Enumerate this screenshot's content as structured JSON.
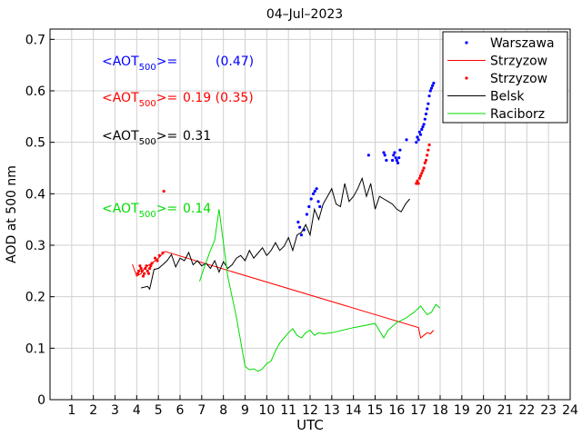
{
  "chart_data": {
    "type": "line",
    "title": "04–Jul–2023",
    "xlabel": "UTC",
    "ylabel": "AOD at 500 nm",
    "xlim": [
      0,
      24
    ],
    "ylim": [
      0,
      0.72
    ],
    "xticks": [
      1,
      2,
      3,
      4,
      5,
      6,
      7,
      8,
      9,
      10,
      11,
      12,
      13,
      14,
      15,
      16,
      17,
      18,
      19,
      20,
      21,
      22,
      23,
      24
    ],
    "yticks": [
      0,
      0.1,
      0.2,
      0.3,
      0.4,
      0.5,
      0.6,
      0.7
    ],
    "ytick_labels": [
      "0",
      "0.1",
      "0.2",
      "0.3",
      "0.4",
      "0.5",
      "0.6",
      "0.7"
    ],
    "grid": true,
    "legend_position": "top-right",
    "annotations": [
      {
        "prefix": "<AOT",
        "sub": "500",
        "suffix": ">=",
        "value": "(0.47)",
        "color": "#0000ff"
      },
      {
        "prefix": "<AOT",
        "sub": "500",
        "suffix": ">=",
        "value": "0.19 (0.35)",
        "color": "#ff0000"
      },
      {
        "prefix": "<AOT",
        "sub": "500",
        "suffix": ">=",
        "value": "0.31",
        "color": "#000000"
      },
      {
        "prefix": "<AOT",
        "sub": "500",
        "suffix": ">=",
        "value": "0.14",
        "color": "#00dd00"
      }
    ],
    "series": [
      {
        "name": "Warszawa",
        "style": "points",
        "color": "#0000ff",
        "x": [
          11.45,
          11.52,
          11.6,
          11.72,
          11.85,
          11.95,
          12.05,
          12.15,
          12.22,
          12.3,
          12.38,
          12.45,
          14.7,
          15.4,
          15.45,
          15.52,
          15.8,
          15.85,
          15.9,
          15.95,
          16.0,
          16.05,
          16.1,
          16.15,
          16.45,
          16.9,
          16.95,
          17.0,
          17.05,
          17.1,
          17.15,
          17.2,
          17.25,
          17.3,
          17.35,
          17.4,
          17.45,
          17.5,
          17.55,
          17.6,
          17.65,
          17.7
        ],
        "y": [
          0.345,
          0.335,
          0.32,
          0.33,
          0.36,
          0.375,
          0.39,
          0.4,
          0.405,
          0.41,
          0.385,
          0.375,
          0.475,
          0.48,
          0.475,
          0.465,
          0.465,
          0.475,
          0.48,
          0.47,
          0.465,
          0.46,
          0.47,
          0.485,
          0.505,
          0.5,
          0.51,
          0.505,
          0.52,
          0.515,
          0.525,
          0.53,
          0.535,
          0.545,
          0.555,
          0.565,
          0.575,
          0.59,
          0.6,
          0.605,
          0.61,
          0.615
        ]
      },
      {
        "name": "Strzyzow",
        "style": "line",
        "color": "#ff0000",
        "x": [
          3.8,
          4.0,
          4.2,
          4.35,
          4.5,
          4.7,
          5.0,
          5.3,
          17.0,
          17.1,
          17.25,
          17.4,
          17.55,
          17.7
        ],
        "y": [
          0.263,
          0.24,
          0.245,
          0.255,
          0.26,
          0.265,
          0.275,
          0.288,
          0.14,
          0.12,
          0.125,
          0.13,
          0.128,
          0.135
        ]
      },
      {
        "name": "Strzyzow",
        "style": "points",
        "color": "#ff0000",
        "x": [
          4.05,
          4.1,
          4.15,
          4.2,
          4.25,
          4.3,
          4.35,
          4.4,
          4.45,
          4.5,
          4.55,
          4.6,
          4.65,
          4.7,
          4.85,
          4.95,
          5.05,
          5.2,
          5.25,
          16.9,
          16.95,
          17.0,
          17.05,
          17.1,
          17.15,
          17.2,
          17.25,
          17.3,
          17.35,
          17.4,
          17.45,
          17.5
        ],
        "y": [
          0.245,
          0.25,
          0.26,
          0.255,
          0.25,
          0.24,
          0.245,
          0.255,
          0.26,
          0.25,
          0.245,
          0.255,
          0.26,
          0.265,
          0.275,
          0.27,
          0.28,
          0.285,
          0.405,
          0.42,
          0.425,
          0.42,
          0.43,
          0.435,
          0.44,
          0.445,
          0.45,
          0.46,
          0.465,
          0.475,
          0.485,
          0.495
        ]
      },
      {
        "name": "Belsk",
        "style": "line",
        "color": "#000000",
        "x": [
          4.2,
          4.5,
          4.6,
          4.8,
          5.0,
          5.2,
          5.4,
          5.6,
          5.8,
          6.0,
          6.2,
          6.4,
          6.6,
          6.8,
          7.0,
          7.2,
          7.4,
          7.6,
          7.8,
          8.0,
          8.2,
          8.4,
          8.6,
          8.8,
          9.0,
          9.2,
          9.4,
          9.6,
          9.8,
          10.0,
          10.2,
          10.4,
          10.6,
          10.8,
          11.0,
          11.2,
          11.4,
          11.6,
          11.8,
          12.0,
          12.2,
          12.4,
          12.6,
          12.8,
          13.0,
          13.2,
          13.4,
          13.6,
          13.8,
          14.0,
          14.2,
          14.4,
          14.6,
          14.8,
          15.0,
          15.2,
          15.4,
          15.6,
          15.8,
          16.0,
          16.2,
          16.4,
          16.6
        ],
        "y": [
          0.217,
          0.22,
          0.215,
          0.253,
          0.255,
          0.262,
          0.27,
          0.282,
          0.258,
          0.275,
          0.27,
          0.286,
          0.262,
          0.27,
          0.26,
          0.265,
          0.255,
          0.27,
          0.248,
          0.268,
          0.255,
          0.262,
          0.275,
          0.28,
          0.27,
          0.29,
          0.275,
          0.285,
          0.295,
          0.28,
          0.29,
          0.305,
          0.29,
          0.298,
          0.315,
          0.29,
          0.32,
          0.325,
          0.34,
          0.32,
          0.37,
          0.35,
          0.38,
          0.395,
          0.41,
          0.38,
          0.375,
          0.42,
          0.385,
          0.395,
          0.41,
          0.43,
          0.395,
          0.42,
          0.37,
          0.395,
          0.39,
          0.385,
          0.38,
          0.37,
          0.365,
          0.38,
          0.39
        ]
      },
      {
        "name": "Raciborz",
        "style": "line",
        "color": "#00dd00",
        "x": [
          6.9,
          7.1,
          7.4,
          7.6,
          7.8,
          8.2,
          8.6,
          9.0,
          9.2,
          9.4,
          9.6,
          9.8,
          10.0,
          10.2,
          10.4,
          10.6,
          10.8,
          11.0,
          11.2,
          11.4,
          11.6,
          11.8,
          12.0,
          12.2,
          12.4,
          12.6,
          13.0,
          14.0,
          15.0,
          15.4,
          15.6,
          16.0,
          16.4,
          16.8,
          17.1,
          17.4,
          17.6,
          17.8,
          18.0
        ],
        "y": [
          0.23,
          0.255,
          0.29,
          0.31,
          0.37,
          0.24,
          0.16,
          0.065,
          0.058,
          0.06,
          0.055,
          0.06,
          0.07,
          0.075,
          0.095,
          0.11,
          0.12,
          0.13,
          0.138,
          0.125,
          0.12,
          0.13,
          0.135,
          0.125,
          0.13,
          0.128,
          0.13,
          0.14,
          0.148,
          0.12,
          0.135,
          0.15,
          0.158,
          0.17,
          0.182,
          0.165,
          0.17,
          0.185,
          0.178
        ]
      }
    ]
  }
}
